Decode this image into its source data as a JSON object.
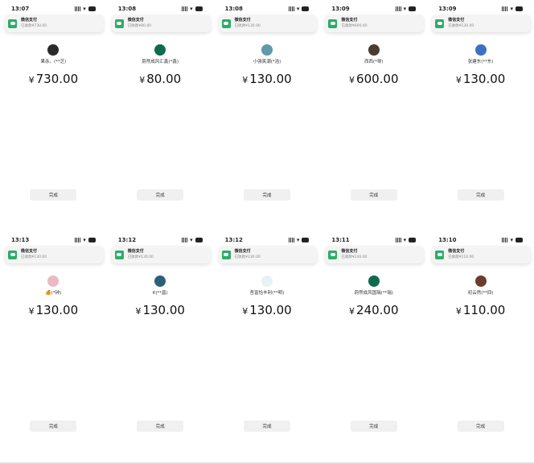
{
  "notification_title": "微信支付",
  "done_label": "完成",
  "currency": "¥",
  "screens": [
    {
      "time": "13:07",
      "notif_sub": "已收款¥730.00",
      "payer": "果赤。(**芝)",
      "amount": "730.00",
      "avatar_color": "#2a2a2a"
    },
    {
      "time": "13:08",
      "notif_sub": "已收款¥80.00",
      "payer": "蔚然成风汇鑫(*鑫)",
      "amount": "80.00",
      "avatar_color": "#0f6b4f"
    },
    {
      "time": "13:08",
      "notif_sub": "已收款¥130.00",
      "payer": "小强笑潮(*浩)",
      "amount": "130.00",
      "avatar_color": "#5e9aa8"
    },
    {
      "time": "13:09",
      "notif_sub": "已收款¥600.00",
      "payer": "西西(*琴)",
      "amount": "600.00",
      "avatar_color": "#4a3a30"
    },
    {
      "time": "13:09",
      "notif_sub": "已收款¥130.00",
      "payer": "张建东(**东)",
      "amount": "130.00",
      "avatar_color": "#3f6fc4"
    },
    {
      "time": "13:13",
      "notif_sub": "已收款¥130.00",
      "payer": "🍊(*钟)",
      "amount": "130.00",
      "avatar_color": "#e9b9c4"
    },
    {
      "time": "13:12",
      "notif_sub": "已收款¥130.00",
      "payer": "K(**昌)",
      "amount": "130.00",
      "avatar_color": "#2e5f7a"
    },
    {
      "time": "13:12",
      "notif_sub": "已收款¥130.00",
      "payer": "吾富恰丰利(**明)",
      "amount": "130.00",
      "avatar_color": "#e8f2f6"
    },
    {
      "time": "13:11",
      "notif_sub": "已收款¥240.00",
      "payer": "蔚然成风国瑞(**瑞)",
      "amount": "240.00",
      "avatar_color": "#0f6b4f"
    },
    {
      "time": "13:10",
      "notif_sub": "已收款¥110.00",
      "payer": "初云然(**四)",
      "amount": "110.00",
      "avatar_color": "#6b3e2c"
    }
  ]
}
